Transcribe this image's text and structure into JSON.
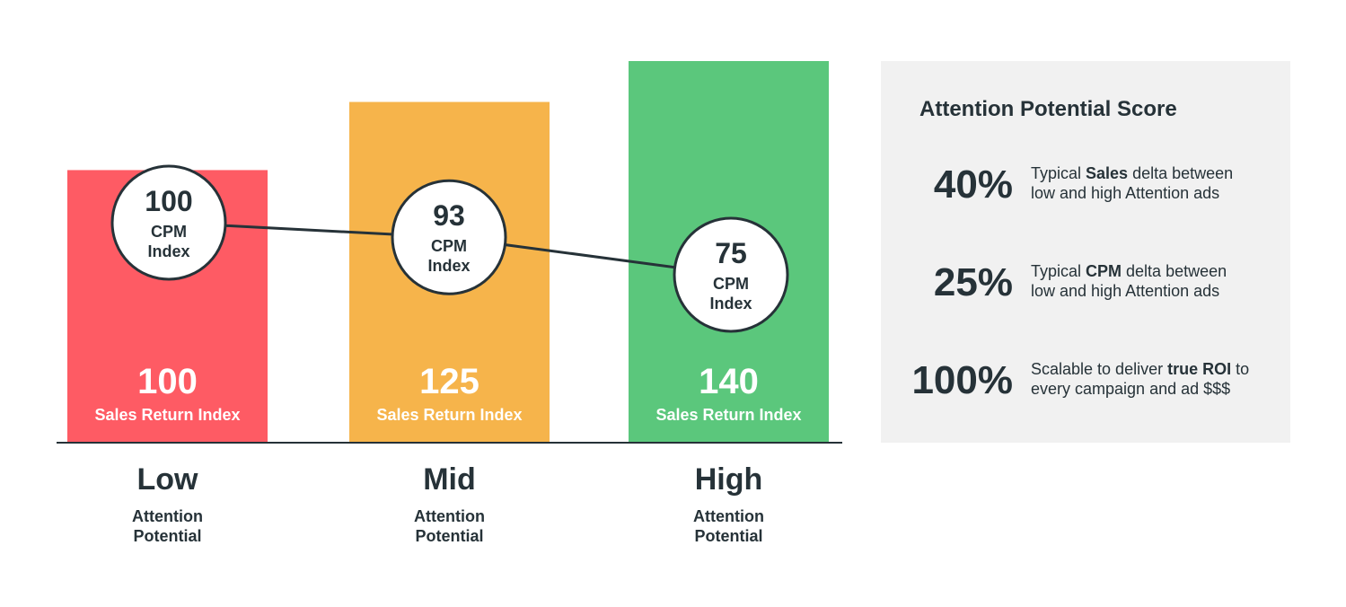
{
  "chart_data": {
    "type": "bar",
    "categories": [
      "Low",
      "Mid",
      "High"
    ],
    "category_sublabels": [
      "Attention Potential",
      "Attention Potential",
      "Attention Potential"
    ],
    "bar_colors": [
      "#fe5b64",
      "#f6b44b",
      "#5bc77c"
    ],
    "series": [
      {
        "name": "Sales Return Index",
        "values": [
          100,
          125,
          140
        ]
      },
      {
        "name": "CPM Index",
        "values": [
          100,
          93,
          75
        ]
      }
    ],
    "bar_caption": "Sales Return Index",
    "circle_caption_line1": "CPM",
    "circle_caption_line2": "Index",
    "grid": false
  },
  "panel": {
    "title": "Attention Potential Score",
    "stats": [
      {
        "value": "40%",
        "line1_pre": "Typical ",
        "line1_bold": "Sales",
        "line1_post": " delta between",
        "line2": "low and high Attention ads"
      },
      {
        "value": "25%",
        "line1_pre": "Typical ",
        "line1_bold": "CPM",
        "line1_post": " delta between",
        "line2": "low and high Attention ads"
      },
      {
        "value": "100%",
        "line1_pre": "Scalable to deliver ",
        "line1_bold": "true ROI",
        "line1_post": " to",
        "line2": "every campaign and ad $$$"
      }
    ]
  },
  "colors": {
    "text": "#263238",
    "panel_bg": "#f1f1f1",
    "axis": "#263238"
  }
}
